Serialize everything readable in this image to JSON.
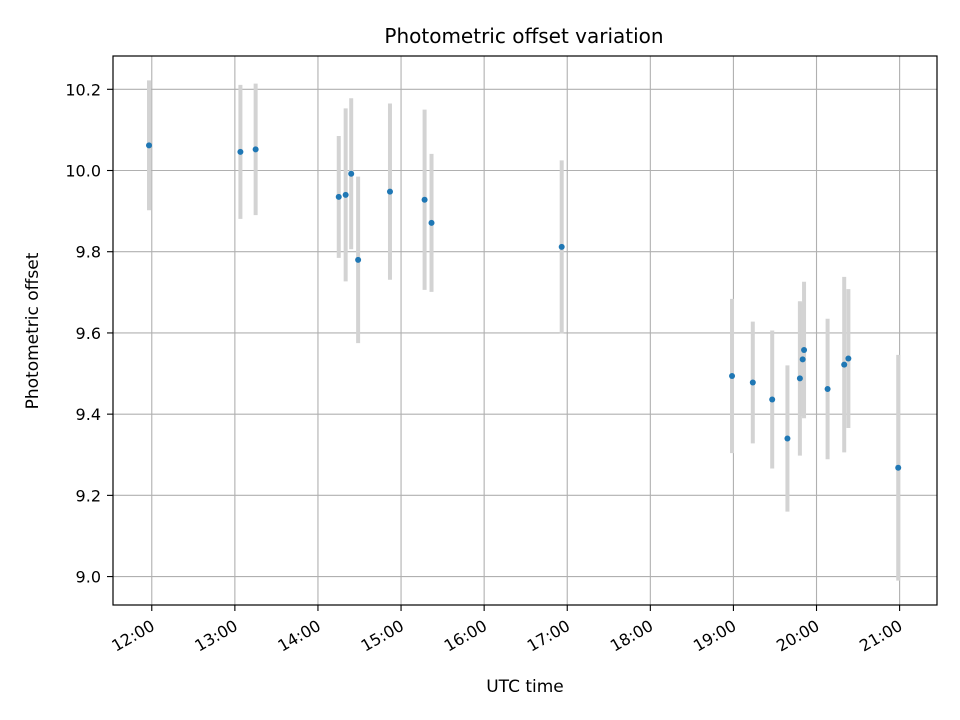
{
  "chart_data": {
    "type": "scatter",
    "title": "Photometric offset variation",
    "xlabel": "UTC time",
    "ylabel": "Photometric offset",
    "x_axis_kind": "time",
    "x_ticks": [
      "12:00",
      "13:00",
      "14:00",
      "15:00",
      "16:00",
      "17:00",
      "18:00",
      "19:00",
      "20:00",
      "21:00"
    ],
    "x_tick_hours": [
      12,
      13,
      14,
      15,
      16,
      17,
      18,
      19,
      20,
      21
    ],
    "xlim": [
      "11:32",
      "21:27"
    ],
    "y_ticks": [
      9.0,
      9.2,
      9.4,
      9.6,
      9.8,
      10.0,
      10.2
    ],
    "y_tick_labels": [
      "9.0",
      "9.2",
      "9.4",
      "9.6",
      "9.8",
      "10.0",
      "10.2"
    ],
    "ylim": [
      8.93,
      10.282
    ],
    "grid": true,
    "marker_color": "#1f77b4",
    "errorbar_color": "#d3d3d3",
    "points": [
      {
        "x": "11:58",
        "y": 10.062,
        "err": 0.16
      },
      {
        "x": "13:04",
        "y": 10.046,
        "err": 0.165
      },
      {
        "x": "13:15",
        "y": 10.052,
        "err": 0.162
      },
      {
        "x": "14:15",
        "y": 9.935,
        "err": 0.15
      },
      {
        "x": "14:20",
        "y": 9.94,
        "err": 0.213
      },
      {
        "x": "14:24",
        "y": 9.992,
        "err": 0.186
      },
      {
        "x": "14:29",
        "y": 9.78,
        "err": 0.205
      },
      {
        "x": "14:52",
        "y": 9.948,
        "err": 0.217
      },
      {
        "x": "15:17",
        "y": 9.928,
        "err": 0.222
      },
      {
        "x": "15:22",
        "y": 9.871,
        "err": 0.17
      },
      {
        "x": "16:56",
        "y": 9.812,
        "err": 0.213
      },
      {
        "x": "18:59",
        "y": 9.494,
        "err": 0.19
      },
      {
        "x": "19:14",
        "y": 9.478,
        "err": 0.15
      },
      {
        "x": "19:28",
        "y": 9.436,
        "err": 0.17
      },
      {
        "x": "19:39",
        "y": 9.34,
        "err": 0.18
      },
      {
        "x": "19:48",
        "y": 9.488,
        "err": 0.19
      },
      {
        "x": "19:50",
        "y": 9.535,
        "err": 0.14
      },
      {
        "x": "19:51",
        "y": 9.558,
        "err": 0.168
      },
      {
        "x": "20:08",
        "y": 9.462,
        "err": 0.173
      },
      {
        "x": "20:20",
        "y": 9.522,
        "err": 0.216
      },
      {
        "x": "20:23",
        "y": 9.537,
        "err": 0.171
      },
      {
        "x": "20:59",
        "y": 9.268,
        "err": 0.278
      }
    ]
  }
}
